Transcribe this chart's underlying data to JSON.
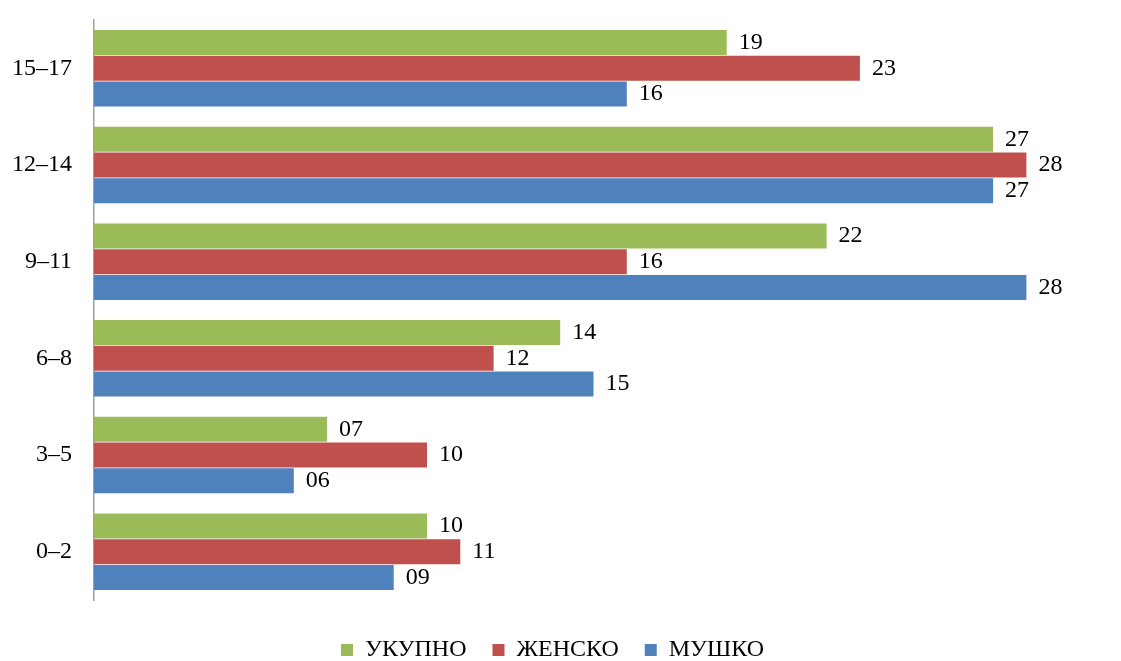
{
  "chart_data": {
    "type": "bar",
    "orientation": "horizontal",
    "categories": [
      "15–17",
      "12–14",
      "9–11",
      "6–8",
      "3–5",
      "0–2"
    ],
    "series": [
      {
        "name": "УКУПНО",
        "color": "#9bbb59",
        "values": [
          19,
          27,
          22,
          14,
          7,
          10
        ],
        "value_labels": [
          "19",
          "27",
          "22",
          "14",
          "07",
          "10"
        ]
      },
      {
        "name": "ЖЕНСКО",
        "color": "#c0504d",
        "values": [
          23,
          28,
          16,
          12,
          10,
          11
        ],
        "value_labels": [
          "23",
          "28",
          "16",
          "12",
          "10",
          "11"
        ]
      },
      {
        "name": "МУШКО",
        "color": "#4f81bd",
        "values": [
          16,
          27,
          28,
          15,
          6,
          9
        ],
        "value_labels": [
          "16",
          "27",
          "28",
          "15",
          "06",
          "09"
        ]
      }
    ],
    "legend": "bottom",
    "grid": false,
    "tick_labels": "y"
  }
}
